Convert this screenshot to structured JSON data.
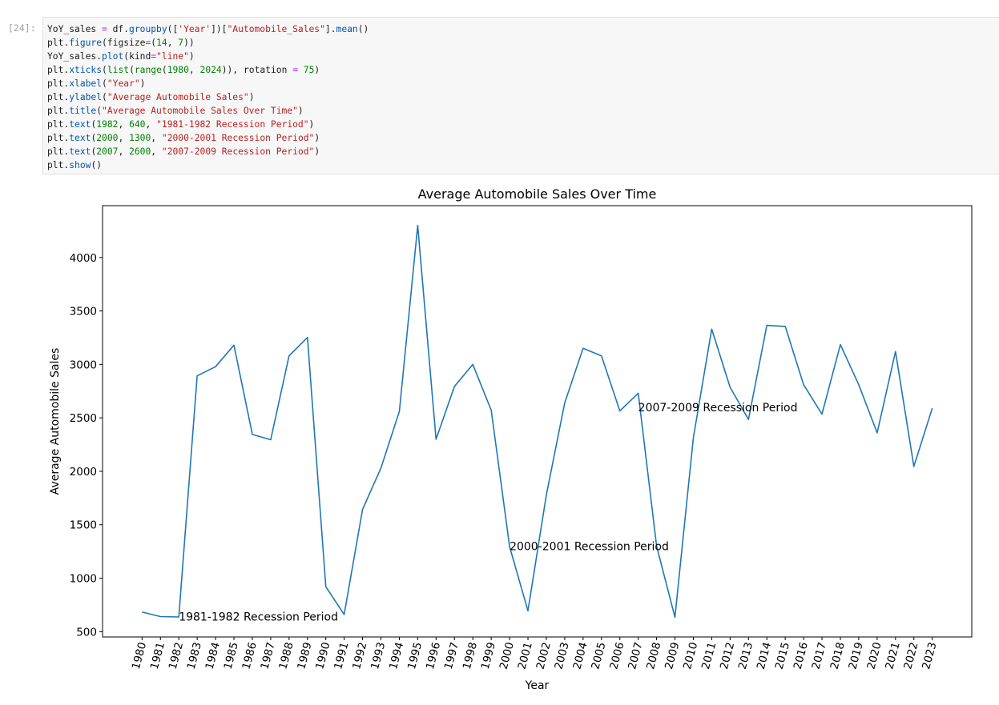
{
  "cell": {
    "prompt": "[24]:",
    "code_lines": [
      [
        [
          "YoY_sales",
          "n"
        ],
        [
          " = ",
          "o"
        ],
        [
          "df",
          "n"
        ],
        [
          ".",
          "p"
        ],
        [
          "groupby",
          "fn"
        ],
        [
          "([",
          "p"
        ],
        [
          "'Year'",
          "s"
        ],
        [
          "])[",
          "p"
        ],
        [
          "\"Automobile_Sales\"",
          "s"
        ],
        [
          "].",
          "p"
        ],
        [
          "mean",
          "fn"
        ],
        [
          "()",
          "p"
        ]
      ],
      [
        [
          "plt",
          "n"
        ],
        [
          ".",
          "p"
        ],
        [
          "figure",
          "fn"
        ],
        [
          "(",
          "p"
        ],
        [
          "figsize",
          "n"
        ],
        [
          "=",
          "o"
        ],
        [
          "(",
          "p"
        ],
        [
          "14",
          "num"
        ],
        [
          ", ",
          "p"
        ],
        [
          "7",
          "num"
        ],
        [
          "))",
          "p"
        ]
      ],
      [
        [
          "YoY_sales",
          "n"
        ],
        [
          ".",
          "p"
        ],
        [
          "plot",
          "fn"
        ],
        [
          "(",
          "p"
        ],
        [
          "kind",
          "n"
        ],
        [
          "=",
          "o"
        ],
        [
          "\"line\"",
          "s"
        ],
        [
          ")",
          "p"
        ]
      ],
      [
        [
          "plt",
          "n"
        ],
        [
          ".",
          "p"
        ],
        [
          "xticks",
          "fn"
        ],
        [
          "(",
          "p"
        ],
        [
          "list",
          "bi"
        ],
        [
          "(",
          "p"
        ],
        [
          "range",
          "bi"
        ],
        [
          "(",
          "p"
        ],
        [
          "1980",
          "num"
        ],
        [
          ", ",
          "p"
        ],
        [
          "2024",
          "num"
        ],
        [
          ")), ",
          "p"
        ],
        [
          "rotation",
          "n"
        ],
        [
          " = ",
          "o"
        ],
        [
          "75",
          "num"
        ],
        [
          ")",
          "p"
        ]
      ],
      [
        [
          "plt",
          "n"
        ],
        [
          ".",
          "p"
        ],
        [
          "xlabel",
          "fn"
        ],
        [
          "(",
          "p"
        ],
        [
          "\"Year\"",
          "s"
        ],
        [
          ")",
          "p"
        ]
      ],
      [
        [
          "plt",
          "n"
        ],
        [
          ".",
          "p"
        ],
        [
          "ylabel",
          "fn"
        ],
        [
          "(",
          "p"
        ],
        [
          "\"Average Automobile Sales\"",
          "s"
        ],
        [
          ")",
          "p"
        ]
      ],
      [
        [
          "plt",
          "n"
        ],
        [
          ".",
          "p"
        ],
        [
          "title",
          "fn"
        ],
        [
          "(",
          "p"
        ],
        [
          "\"Average Automobile Sales Over Time\"",
          "s"
        ],
        [
          ")",
          "p"
        ]
      ],
      [
        [
          "plt",
          "n"
        ],
        [
          ".",
          "p"
        ],
        [
          "text",
          "fn"
        ],
        [
          "(",
          "p"
        ],
        [
          "1982",
          "num"
        ],
        [
          ", ",
          "p"
        ],
        [
          "640",
          "num"
        ],
        [
          ", ",
          "p"
        ],
        [
          "\"1981-1982 Recession Period\"",
          "s"
        ],
        [
          ")",
          "p"
        ]
      ],
      [
        [
          "plt",
          "n"
        ],
        [
          ".",
          "p"
        ],
        [
          "text",
          "fn"
        ],
        [
          "(",
          "p"
        ],
        [
          "2000",
          "num"
        ],
        [
          ", ",
          "p"
        ],
        [
          "1300",
          "num"
        ],
        [
          ", ",
          "p"
        ],
        [
          "\"2000-2001 Recession Period\"",
          "s"
        ],
        [
          ")",
          "p"
        ]
      ],
      [
        [
          "plt",
          "n"
        ],
        [
          ".",
          "p"
        ],
        [
          "text",
          "fn"
        ],
        [
          "(",
          "p"
        ],
        [
          "2007",
          "num"
        ],
        [
          ", ",
          "p"
        ],
        [
          "2600",
          "num"
        ],
        [
          ", ",
          "p"
        ],
        [
          "\"2007-2009 Recession Period\"",
          "s"
        ],
        [
          ")",
          "p"
        ]
      ],
      [
        [
          "plt",
          "n"
        ],
        [
          ".",
          "p"
        ],
        [
          "show",
          "fn"
        ],
        [
          "()",
          "p"
        ]
      ]
    ]
  },
  "colors": {
    "line": "#1f77b4",
    "axes": "#000000",
    "code_background": "#f7f7f7"
  },
  "chart_data": {
    "type": "line",
    "title": "Average Automobile Sales Over Time",
    "xlabel": "Year",
    "ylabel": "Average Automobile Sales",
    "x": [
      1980,
      1981,
      1982,
      1983,
      1984,
      1985,
      1986,
      1987,
      1988,
      1989,
      1990,
      1991,
      1992,
      1993,
      1994,
      1995,
      1996,
      1997,
      1998,
      1999,
      2000,
      2001,
      2002,
      2003,
      2004,
      2005,
      2006,
      2007,
      2008,
      2009,
      2010,
      2011,
      2012,
      2013,
      2014,
      2015,
      2016,
      2017,
      2018,
      2019,
      2020,
      2021,
      2022,
      2023
    ],
    "series": [
      {
        "values": [
          683,
          641,
          637,
          2893,
          2979,
          3180,
          2345,
          2295,
          3080,
          3252,
          920,
          660,
          1645,
          2030,
          2560,
          4300,
          2300,
          2795,
          3000,
          2570,
          1295,
          695,
          1780,
          2640,
          3150,
          3080,
          2565,
          2730,
          1300,
          635,
          2315,
          3330,
          2785,
          2485,
          3365,
          3355,
          2810,
          2535,
          3185,
          2810,
          2360,
          3120,
          2045,
          2590
        ]
      }
    ],
    "xticks": [
      1980,
      1981,
      1982,
      1983,
      1984,
      1985,
      1986,
      1987,
      1988,
      1989,
      1990,
      1991,
      1992,
      1993,
      1994,
      1995,
      1996,
      1997,
      1998,
      1999,
      2000,
      2001,
      2002,
      2003,
      2004,
      2005,
      2006,
      2007,
      2008,
      2009,
      2010,
      2011,
      2012,
      2013,
      2014,
      2015,
      2016,
      2017,
      2018,
      2019,
      2020,
      2021,
      2022,
      2023
    ],
    "xtick_rotation": 75,
    "yticks": [
      500,
      1000,
      1500,
      2000,
      2500,
      3000,
      3500,
      4000
    ],
    "xlim": [
      1977.85,
      2025.15
    ],
    "ylim": [
      450,
      4485
    ],
    "grid": false,
    "annotations": [
      {
        "x": 1982,
        "y": 640,
        "text": "1981-1982 Recession Period"
      },
      {
        "x": 2000,
        "y": 1300,
        "text": "2000-2001 Recession Period"
      },
      {
        "x": 2007,
        "y": 2600,
        "text": "2007-2009 Recession Period"
      }
    ]
  }
}
